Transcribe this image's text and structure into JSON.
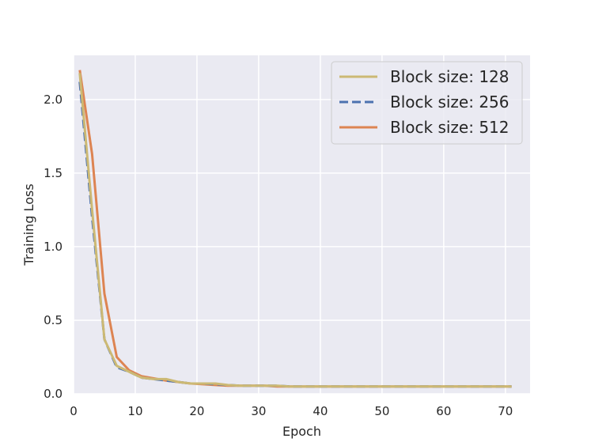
{
  "chart_data": {
    "type": "line",
    "title": "",
    "xlabel": "Epoch",
    "ylabel": "Training Loss",
    "xlim": [
      0,
      74
    ],
    "ylim": [
      0,
      2.3
    ],
    "xticks": [
      0,
      10,
      20,
      30,
      40,
      50,
      60,
      70
    ],
    "yticks": [
      0.0,
      0.5,
      1.0,
      1.5,
      2.0
    ],
    "xtick_labels": [
      "0",
      "10",
      "20",
      "30",
      "40",
      "50",
      "60",
      "70"
    ],
    "ytick_labels": [
      "0.0",
      "0.5",
      "1.0",
      "1.5",
      "2.0"
    ],
    "grid": true,
    "legend_position": "top-right",
    "colors": {
      "background": "#eaeaf2",
      "grid": "#ffffff",
      "block128": "#ccb974",
      "block256": "#4c72b0",
      "block512": "#dd8452"
    },
    "x": [
      1,
      3,
      5,
      7,
      9,
      11,
      13,
      15,
      17,
      19,
      21,
      23,
      25,
      27,
      29,
      31,
      33,
      35,
      37,
      39,
      41,
      43,
      45,
      47,
      49,
      51,
      53,
      55,
      57,
      59,
      61,
      63,
      65,
      67,
      69,
      71
    ],
    "series": [
      {
        "name": "Block size: 128",
        "style": "solid",
        "color": "#ccb974",
        "values": [
          2.18,
          1.25,
          0.37,
          0.19,
          0.15,
          0.11,
          0.1,
          0.1,
          0.08,
          0.07,
          0.07,
          0.07,
          0.06,
          0.055,
          0.055,
          0.055,
          0.055,
          0.05,
          0.05,
          0.05,
          0.05,
          0.05,
          0.05,
          0.05,
          0.05,
          0.05,
          0.05,
          0.05,
          0.05,
          0.05,
          0.05,
          0.05,
          0.05,
          0.05,
          0.05,
          0.05
        ]
      },
      {
        "name": "Block size: 256",
        "style": "dashed",
        "color": "#4c72b0",
        "values": [
          2.12,
          1.2,
          0.37,
          0.18,
          0.15,
          0.11,
          0.1,
          0.09,
          0.08,
          0.07,
          0.07,
          0.065,
          0.06,
          0.055,
          0.055,
          0.055,
          0.055,
          0.05,
          0.05,
          0.05,
          0.05,
          0.05,
          0.05,
          0.05,
          0.05,
          0.05,
          0.05,
          0.05,
          0.05,
          0.05,
          0.05,
          0.05,
          0.05,
          0.05,
          0.05,
          0.05
        ]
      },
      {
        "name": "Block size: 512",
        "style": "solid",
        "color": "#dd8452",
        "values": [
          2.2,
          1.63,
          0.68,
          0.25,
          0.16,
          0.12,
          0.105,
          0.09,
          0.08,
          0.07,
          0.065,
          0.06,
          0.055,
          0.055,
          0.055,
          0.055,
          0.05,
          0.05,
          0.05,
          0.05,
          0.05,
          0.05,
          0.05,
          0.05,
          0.05,
          0.05,
          0.05,
          0.05,
          0.05,
          0.05,
          0.05,
          0.05,
          0.05,
          0.05,
          0.05,
          0.05
        ]
      }
    ]
  }
}
